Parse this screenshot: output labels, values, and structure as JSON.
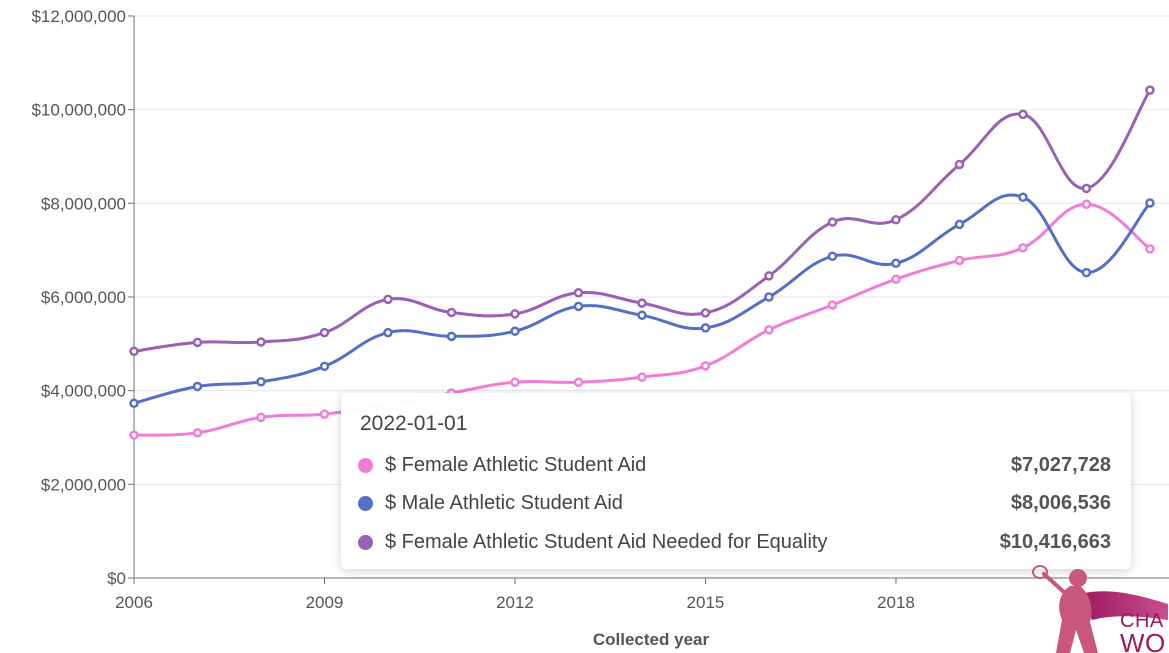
{
  "chart_data": {
    "type": "line",
    "xlabel": "Collected year",
    "ylabel": "",
    "x_ticks": [
      "2006",
      "2009",
      "2012",
      "2015",
      "2018"
    ],
    "y_ticks": [
      "$0",
      "$2,000,000",
      "$4,000,000",
      "$6,000,000",
      "$8,000,000",
      "$10,000,000",
      "$12,000,000"
    ],
    "ylim": [
      0,
      12000000
    ],
    "xlim": [
      2006,
      2022.3
    ],
    "grid": "horizontal",
    "x": [
      2006,
      2007,
      2008,
      2009,
      2010,
      2011,
      2012,
      2013,
      2014,
      2015,
      2016,
      2017,
      2018,
      2019,
      2020,
      2021,
      2022
    ],
    "series": [
      {
        "name": "$ Female Athletic Student Aid",
        "color": "#f07ed6",
        "values": [
          3050000,
          3100000,
          3430000,
          3500000,
          3700000,
          3950000,
          4180000,
          4180000,
          4290000,
          4530000,
          5300000,
          5830000,
          6380000,
          6780000,
          7050000,
          7980000,
          7027728
        ]
      },
      {
        "name": "$ Male Athletic Student Aid",
        "color": "#5470c6",
        "values": [
          3730000,
          4090000,
          4190000,
          4520000,
          5240000,
          5160000,
          5270000,
          5800000,
          5610000,
          5340000,
          6000000,
          6870000,
          6720000,
          7550000,
          8130000,
          6520000,
          8006536
        ]
      },
      {
        "name": "$ Female Athletic Student Aid Needed for Equality",
        "color": "#9a60b4",
        "values": [
          4840000,
          5030000,
          5040000,
          5240000,
          5950000,
          5670000,
          5640000,
          6090000,
          5870000,
          5660000,
          6450000,
          7600000,
          7650000,
          8830000,
          9900000,
          8320000,
          10416663
        ]
      }
    ]
  },
  "tooltip": {
    "date": "2022-01-01",
    "rows": [
      {
        "name": "$ Female Athletic Student Aid",
        "value": "$7,027,728",
        "color": "#f07ed6"
      },
      {
        "name": "$ Male Athletic Student Aid",
        "value": "$8,006,536",
        "color": "#5470c6"
      },
      {
        "name": "$ Female Athletic Student Aid Needed for Equality",
        "value": "$10,416,663",
        "color": "#9a60b4"
      }
    ]
  },
  "logo": {
    "line1": "CHA",
    "line2": "WO"
  }
}
